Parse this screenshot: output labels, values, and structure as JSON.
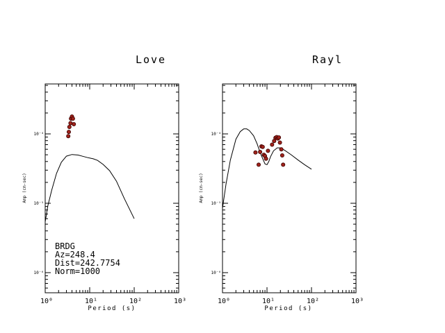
{
  "chart_data": [
    {
      "type": "line+scatter",
      "title": "Love",
      "xlabel": "Period (s)",
      "ylabel": "Amp (cm-sec)",
      "xscale": "log",
      "yscale": "log",
      "xlim": [
        1,
        1000
      ],
      "ylim": [
        5e-06,
        0.0004
      ],
      "x_ticks": [
        "10⁰",
        "10¹",
        "10²",
        "10³"
      ],
      "y_ticks": [
        "10⁻⁶",
        "10⁻⁵",
        "10⁻⁴"
      ],
      "grid": false,
      "annotation": [
        "BRDG",
        "Az=248.4",
        "Dist=242.7754",
        "Norm=1000"
      ],
      "line": {
        "x": [
          1.0,
          1.15,
          1.4,
          1.8,
          2.3,
          3.0,
          4.0,
          5.5,
          7.0,
          9.0,
          12.0,
          15.0,
          20.0,
          28.0,
          40.0,
          60.0,
          100.0
        ],
        "y": [
          5.4e-06,
          9.3e-06,
          1.55e-05,
          2.7e-05,
          3.9e-05,
          4.78e-05,
          5.05e-05,
          4.95e-05,
          4.75e-05,
          4.55e-05,
          4.38e-05,
          4.15e-05,
          3.63e-05,
          2.95e-05,
          2.08e-05,
          1.17e-05,
          6e-06
        ]
      },
      "points": {
        "x": [
          3.3,
          3.4,
          3.5,
          3.7,
          3.8,
          4.0,
          4.2,
          4.4
        ],
        "y": [
          9.3e-05,
          0.000107,
          0.000126,
          0.000143,
          0.000166,
          0.000178,
          0.000166,
          0.000138
        ]
      }
    },
    {
      "type": "line+scatter",
      "title": "Rayl",
      "xlabel": "Period (s)",
      "ylabel": "Amp (cm-sec)",
      "xscale": "log",
      "yscale": "log",
      "xlim": [
        1,
        1000
      ],
      "ylim": [
        5e-06,
        0.0004
      ],
      "x_ticks": [
        "10⁰",
        "10¹",
        "10²",
        "10³"
      ],
      "y_ticks": [
        "10⁻⁶",
        "10⁻⁵",
        "10⁻⁴"
      ],
      "grid": false,
      "line": {
        "x": [
          1.0,
          1.2,
          1.5,
          2.0,
          2.5,
          3.0,
          3.5,
          4.0,
          5.0,
          6.0,
          7.0,
          8.0,
          9.0,
          10.0,
          11.0,
          12.0,
          14.0,
          17.0,
          20.0,
          25.0,
          35.0,
          50.0,
          70.0,
          100.0
        ],
        "y": [
          8.5e-06,
          1.9e-05,
          4.2e-05,
          8.4e-05,
          0.000108,
          0.000118,
          0.000118,
          0.000112,
          9.4e-05,
          7.2e-05,
          5.4e-05,
          4.4e-05,
          3.7e-05,
          3.6e-05,
          4e-05,
          4.7e-05,
          5.7e-05,
          6.3e-05,
          6.3e-05,
          5.8e-05,
          5e-05,
          4.2e-05,
          3.6e-05,
          3.1e-05
        ]
      },
      "points": {
        "x": [
          5.5,
          6.5,
          7.0,
          7.5,
          8.0,
          8.5,
          9.0,
          9.5,
          10.5,
          13.0,
          14.5,
          15.5,
          16.5,
          17.5,
          18.5,
          19.5,
          21.0,
          22.0,
          23.0
        ],
        "y": [
          5.4e-05,
          3.6e-05,
          5.5e-05,
          6.6e-05,
          6.5e-05,
          5e-05,
          4.8e-05,
          4.4e-05,
          5.7e-05,
          7e-05,
          7.9e-05,
          8.8e-05,
          9e-05,
          8.6e-05,
          8.9e-05,
          7.5e-05,
          6e-05,
          4.9e-05,
          3.6e-05
        ]
      }
    }
  ]
}
